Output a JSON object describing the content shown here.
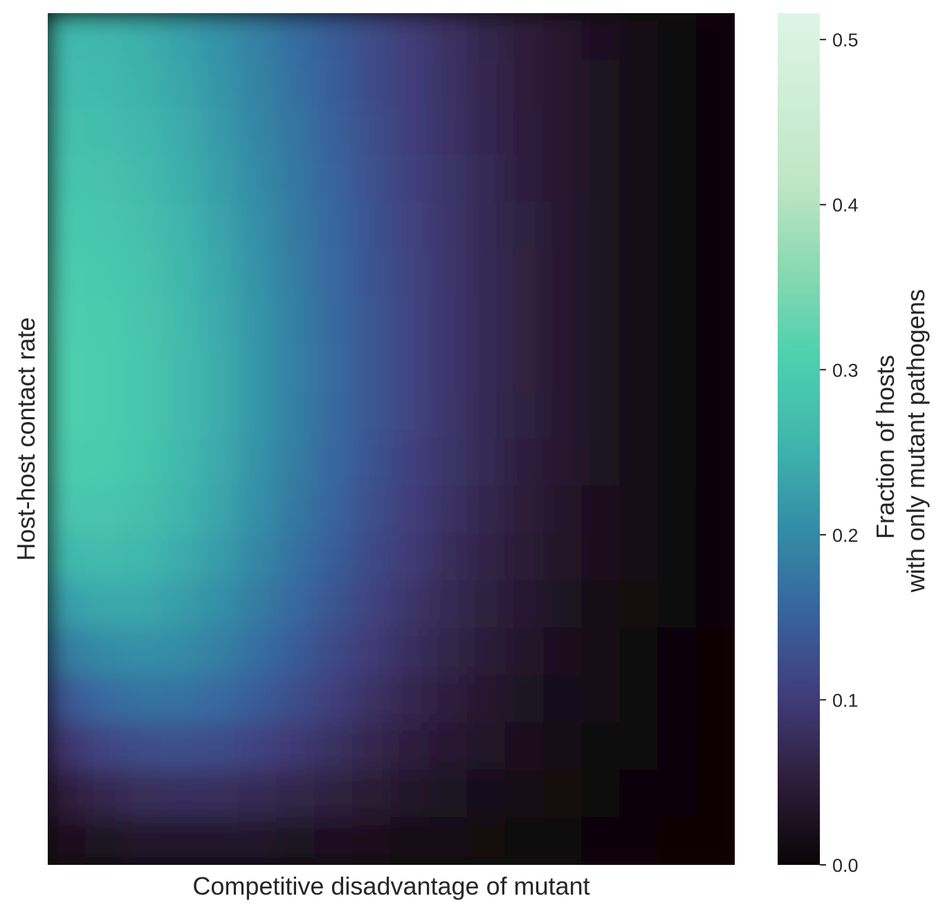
{
  "chart_data": {
    "type": "heatmap",
    "title": "",
    "xlabel": "Competitive disadvantage of mutant",
    "ylabel": "Host-host contact rate",
    "x_ticks": [],
    "y_ticks": [],
    "grid": false,
    "colorbar": {
      "label_lines": [
        "Fraction of hosts",
        "with only mutant pathogens"
      ],
      "min": 0.0,
      "max": 0.516,
      "ticks": [
        0.0,
        0.1,
        0.2,
        0.3,
        0.4,
        0.5
      ],
      "tick_labels": [
        "0.0",
        "0.1",
        "0.2",
        "0.3",
        "0.4",
        "0.5"
      ],
      "colormap": "mako",
      "colormap_stops": [
        {
          "value": 0.0,
          "color": "#0b0405"
        },
        {
          "value": 0.1,
          "color": "#2e1e3b"
        },
        {
          "value": 0.2,
          "color": "#413d7b"
        },
        {
          "value": 0.3,
          "color": "#37659e"
        },
        {
          "value": 0.4,
          "color": "#348fa7"
        },
        {
          "value": 0.5,
          "color": "#40b7ad"
        },
        {
          "value": 0.6,
          "color": "#4fd1ae"
        },
        {
          "value": 0.7,
          "color": "#8ad9b1"
        },
        {
          "value": 0.8,
          "color": "#bfe6c6"
        },
        {
          "value": 1.0,
          "color": "#def5e5"
        }
      ]
    },
    "rows_order": "top_to_bottom",
    "values": [
      [
        0.262,
        0.257,
        0.246,
        0.23,
        0.21,
        0.188,
        0.165,
        0.143,
        0.121,
        0.101,
        0.083,
        0.066,
        0.051,
        0.038,
        0.026,
        0.016,
        0.008,
        0.003
      ],
      [
        0.267,
        0.262,
        0.251,
        0.235,
        0.215,
        0.192,
        0.168,
        0.145,
        0.123,
        0.103,
        0.084,
        0.067,
        0.052,
        0.039,
        0.027,
        0.017,
        0.009,
        0.003
      ],
      [
        0.275,
        0.27,
        0.258,
        0.242,
        0.221,
        0.197,
        0.173,
        0.149,
        0.126,
        0.105,
        0.086,
        0.069,
        0.053,
        0.04,
        0.028,
        0.017,
        0.009,
        0.003
      ],
      [
        0.283,
        0.278,
        0.266,
        0.248,
        0.227,
        0.202,
        0.177,
        0.153,
        0.129,
        0.108,
        0.088,
        0.07,
        0.054,
        0.04,
        0.028,
        0.018,
        0.009,
        0.003
      ],
      [
        0.291,
        0.285,
        0.273,
        0.255,
        0.232,
        0.207,
        0.181,
        0.156,
        0.132,
        0.11,
        0.09,
        0.072,
        0.055,
        0.041,
        0.029,
        0.018,
        0.009,
        0.003
      ],
      [
        0.298,
        0.292,
        0.279,
        0.26,
        0.237,
        0.211,
        0.184,
        0.158,
        0.134,
        0.112,
        0.091,
        0.073,
        0.056,
        0.042,
        0.029,
        0.018,
        0.009,
        0.003
      ],
      [
        0.303,
        0.297,
        0.284,
        0.264,
        0.24,
        0.214,
        0.187,
        0.16,
        0.136,
        0.113,
        0.092,
        0.073,
        0.056,
        0.042,
        0.029,
        0.018,
        0.009,
        0.003
      ],
      [
        0.306,
        0.3,
        0.287,
        0.267,
        0.242,
        0.215,
        0.188,
        0.161,
        0.136,
        0.113,
        0.092,
        0.073,
        0.056,
        0.042,
        0.029,
        0.018,
        0.009,
        0.003
      ],
      [
        0.305,
        0.3,
        0.287,
        0.267,
        0.242,
        0.215,
        0.187,
        0.16,
        0.135,
        0.112,
        0.091,
        0.072,
        0.055,
        0.041,
        0.028,
        0.017,
        0.009,
        0.003
      ],
      [
        0.299,
        0.295,
        0.283,
        0.263,
        0.239,
        0.212,
        0.184,
        0.157,
        0.132,
        0.109,
        0.088,
        0.07,
        0.053,
        0.039,
        0.027,
        0.016,
        0.008,
        0.003
      ],
      [
        0.286,
        0.284,
        0.274,
        0.256,
        0.233,
        0.206,
        0.178,
        0.152,
        0.127,
        0.104,
        0.084,
        0.066,
        0.05,
        0.036,
        0.025,
        0.015,
        0.007,
        0.002
      ],
      [
        0.262,
        0.266,
        0.259,
        0.243,
        0.222,
        0.196,
        0.17,
        0.144,
        0.12,
        0.098,
        0.078,
        0.061,
        0.046,
        0.033,
        0.022,
        0.013,
        0.006,
        0.002
      ],
      [
        0.226,
        0.238,
        0.237,
        0.225,
        0.207,
        0.183,
        0.158,
        0.133,
        0.11,
        0.089,
        0.071,
        0.055,
        0.041,
        0.029,
        0.019,
        0.011,
        0.005,
        0.002
      ],
      [
        0.183,
        0.202,
        0.208,
        0.202,
        0.187,
        0.166,
        0.143,
        0.12,
        0.099,
        0.08,
        0.063,
        0.048,
        0.035,
        0.025,
        0.016,
        0.009,
        0.004,
        0.001
      ],
      [
        0.137,
        0.16,
        0.171,
        0.17,
        0.16,
        0.143,
        0.124,
        0.104,
        0.085,
        0.068,
        0.053,
        0.04,
        0.029,
        0.02,
        0.013,
        0.007,
        0.003,
        0.001
      ],
      [
        0.092,
        0.113,
        0.124,
        0.127,
        0.122,
        0.111,
        0.097,
        0.082,
        0.067,
        0.053,
        0.041,
        0.031,
        0.022,
        0.015,
        0.009,
        0.005,
        0.002,
        0.001
      ],
      [
        0.053,
        0.067,
        0.076,
        0.08,
        0.078,
        0.072,
        0.064,
        0.055,
        0.045,
        0.036,
        0.028,
        0.021,
        0.015,
        0.01,
        0.006,
        0.003,
        0.002,
        0.0
      ],
      [
        0.022,
        0.029,
        0.034,
        0.036,
        0.036,
        0.034,
        0.03,
        0.026,
        0.022,
        0.018,
        0.014,
        0.01,
        0.007,
        0.005,
        0.003,
        0.002,
        0.001,
        0.0
      ]
    ]
  }
}
